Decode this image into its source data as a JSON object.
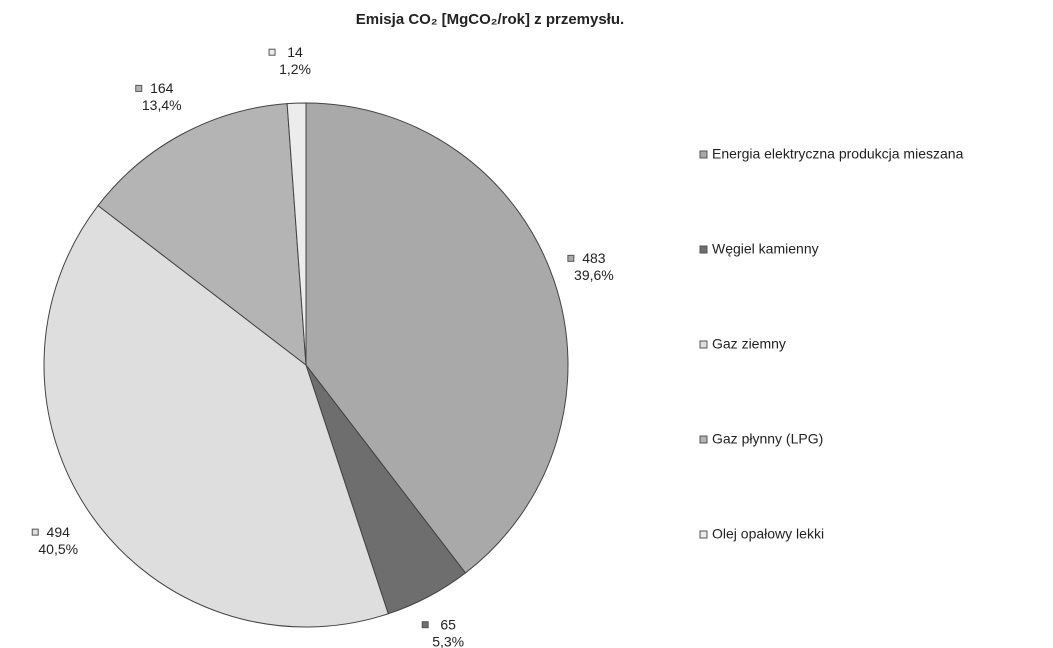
{
  "chart_data": {
    "type": "pie",
    "title": "Emisja CO₂  [MgCO₂/rok] z przemysłu.",
    "categories": [
      "Energia elektryczna produkcja mieszana",
      "Węgiel kamienny",
      "Gaz ziemny",
      "Gaz płynny (LPG)",
      "Olej opałowy lekki"
    ],
    "values": [
      483,
      65,
      494,
      164,
      14
    ],
    "percentages": [
      39.6,
      5.3,
      40.5,
      13.4,
      1.2
    ],
    "percentage_labels": [
      "39,6%",
      "5,3%",
      "40,5%",
      "13,4%",
      "1,2%"
    ],
    "colors": [
      "#a9a9a9",
      "#6e6e6e",
      "#dedede",
      "#b4b4b4",
      "#ececec"
    ],
    "legend": "right"
  }
}
